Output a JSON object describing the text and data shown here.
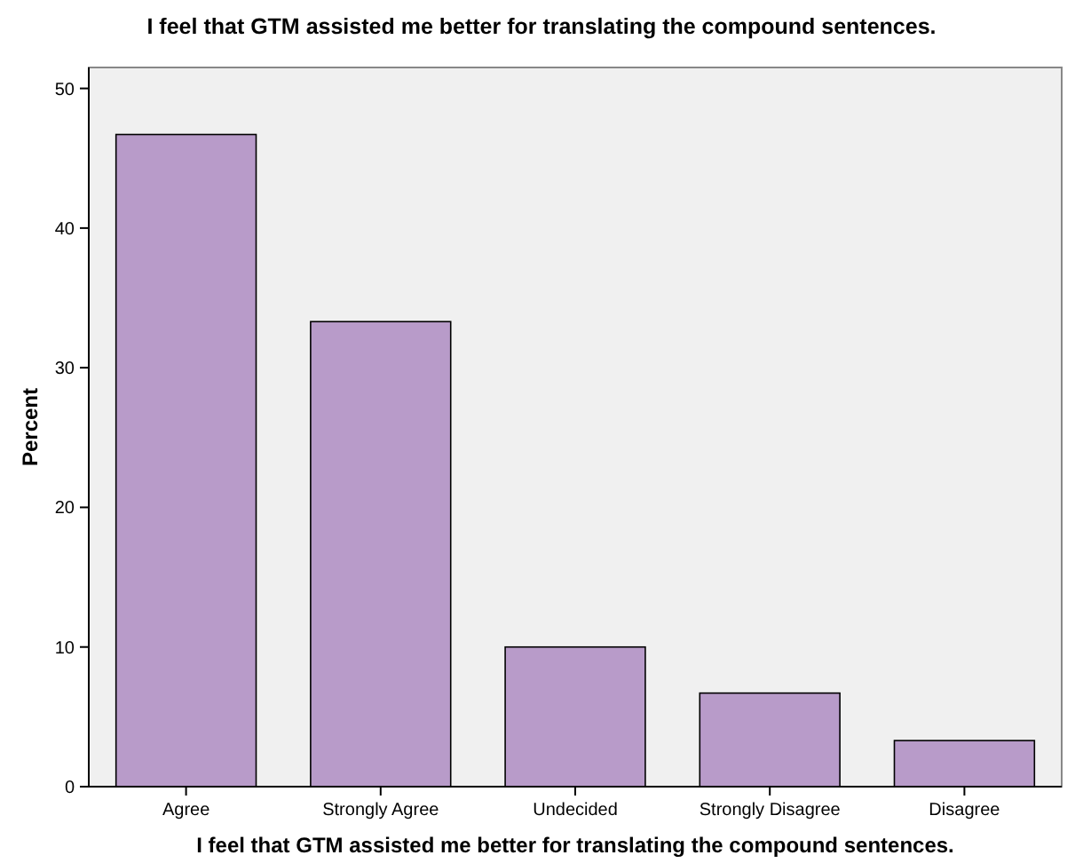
{
  "chart_data": {
    "type": "bar",
    "title": "I feel that GTM assisted me better for translating the compound sentences.",
    "xlabel": "I feel that GTM assisted me better for translating the compound sentences.",
    "ylabel": "Percent",
    "categories": [
      "Agree",
      "Strongly Agree",
      "Undecided",
      "Strongly Disagree",
      "Disagree"
    ],
    "values": [
      46.7,
      33.3,
      10,
      6.7,
      3.3
    ],
    "color": "#b89bc9",
    "ylim": [
      0,
      51.5
    ],
    "yticks": [
      0,
      10,
      20,
      30,
      40,
      50
    ],
    "grid": false
  }
}
